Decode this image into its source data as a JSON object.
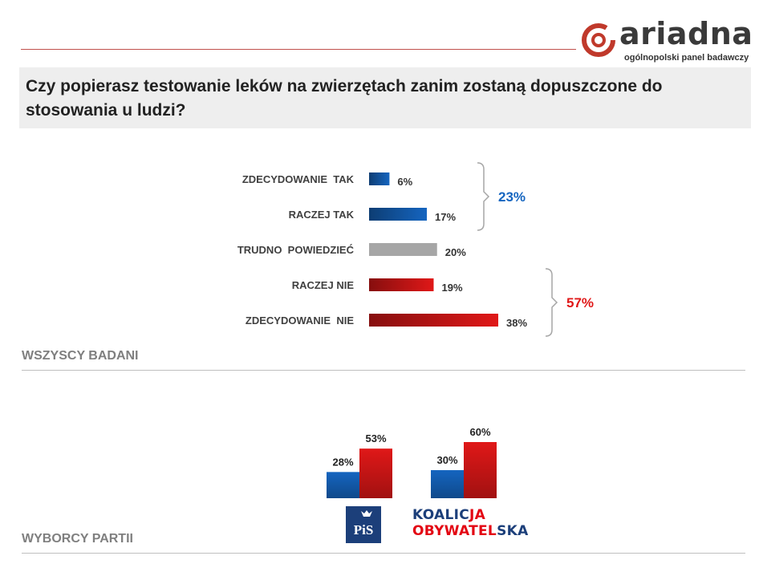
{
  "brand": {
    "name": "ariadna",
    "tagline": "ogólnopolski panel badawczy"
  },
  "question": "Czy popierasz testowanie leków na zwierzętach zanim zostaną dopuszczone do stosowania u ludzi?",
  "sections": {
    "all": "WSZYSCY BADANI",
    "parties": "WYBORCY PARTII"
  },
  "party_logos": {
    "pis": "PiS",
    "ko_line1_a": "KOALIC",
    "ko_line1_b": "JA",
    "ko_line2_a": "OBYWATEL",
    "ko_line2_b": "SKA"
  },
  "colors": {
    "yes": "#1565c0",
    "neutral": "#a6a6a6",
    "no": "#e01818",
    "accent": "#c0504d"
  },
  "chart_data": [
    {
      "type": "bar",
      "orientation": "horizontal",
      "categories": [
        "ZDECYDOWANIE  TAK",
        "RACZEJ TAK",
        "TRUDNO  POWIEDZIEĆ",
        "RACZEJ NIE",
        "ZDECYDOWANIE  NIE"
      ],
      "values": [
        6,
        17,
        20,
        19,
        38
      ],
      "value_labels": [
        "6%",
        "17%",
        "20%",
        "19%",
        "38%"
      ],
      "color_keys": [
        "yes",
        "yes",
        "neutral",
        "no",
        "no"
      ],
      "groups": [
        {
          "label": "23%",
          "from": 0,
          "to": 1,
          "color_key": "yes"
        },
        {
          "label": "57%",
          "from": 3,
          "to": 4,
          "color_key": "no"
        }
      ],
      "grid": false
    },
    {
      "type": "bar",
      "orientation": "vertical",
      "categories": [
        "PiS",
        "KOALICJA OBYWATELSKA"
      ],
      "series": [
        {
          "values": [
            28,
            30
          ],
          "labels": [
            "28%",
            "30%"
          ],
          "color_key": "yes"
        },
        {
          "values": [
            53,
            60
          ],
          "labels": [
            "53%",
            "60%"
          ],
          "color_key": "no"
        }
      ],
      "grid": false
    }
  ]
}
